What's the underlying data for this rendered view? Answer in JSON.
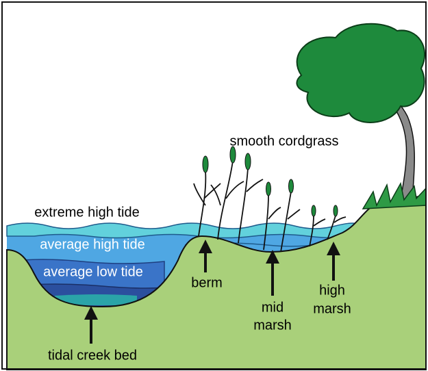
{
  "labels": {
    "smooth_cordgrass": "smooth cordgrass",
    "extreme_high_tide": "extreme high tide",
    "average_high_tide": "average high tide",
    "average_low_tide": "average low tide",
    "berm": "berm",
    "mid_marsh": [
      "mid",
      "marsh"
    ],
    "high_marsh": [
      "high",
      "marsh"
    ],
    "tidal_creek_bed": "tidal creek bed"
  }
}
